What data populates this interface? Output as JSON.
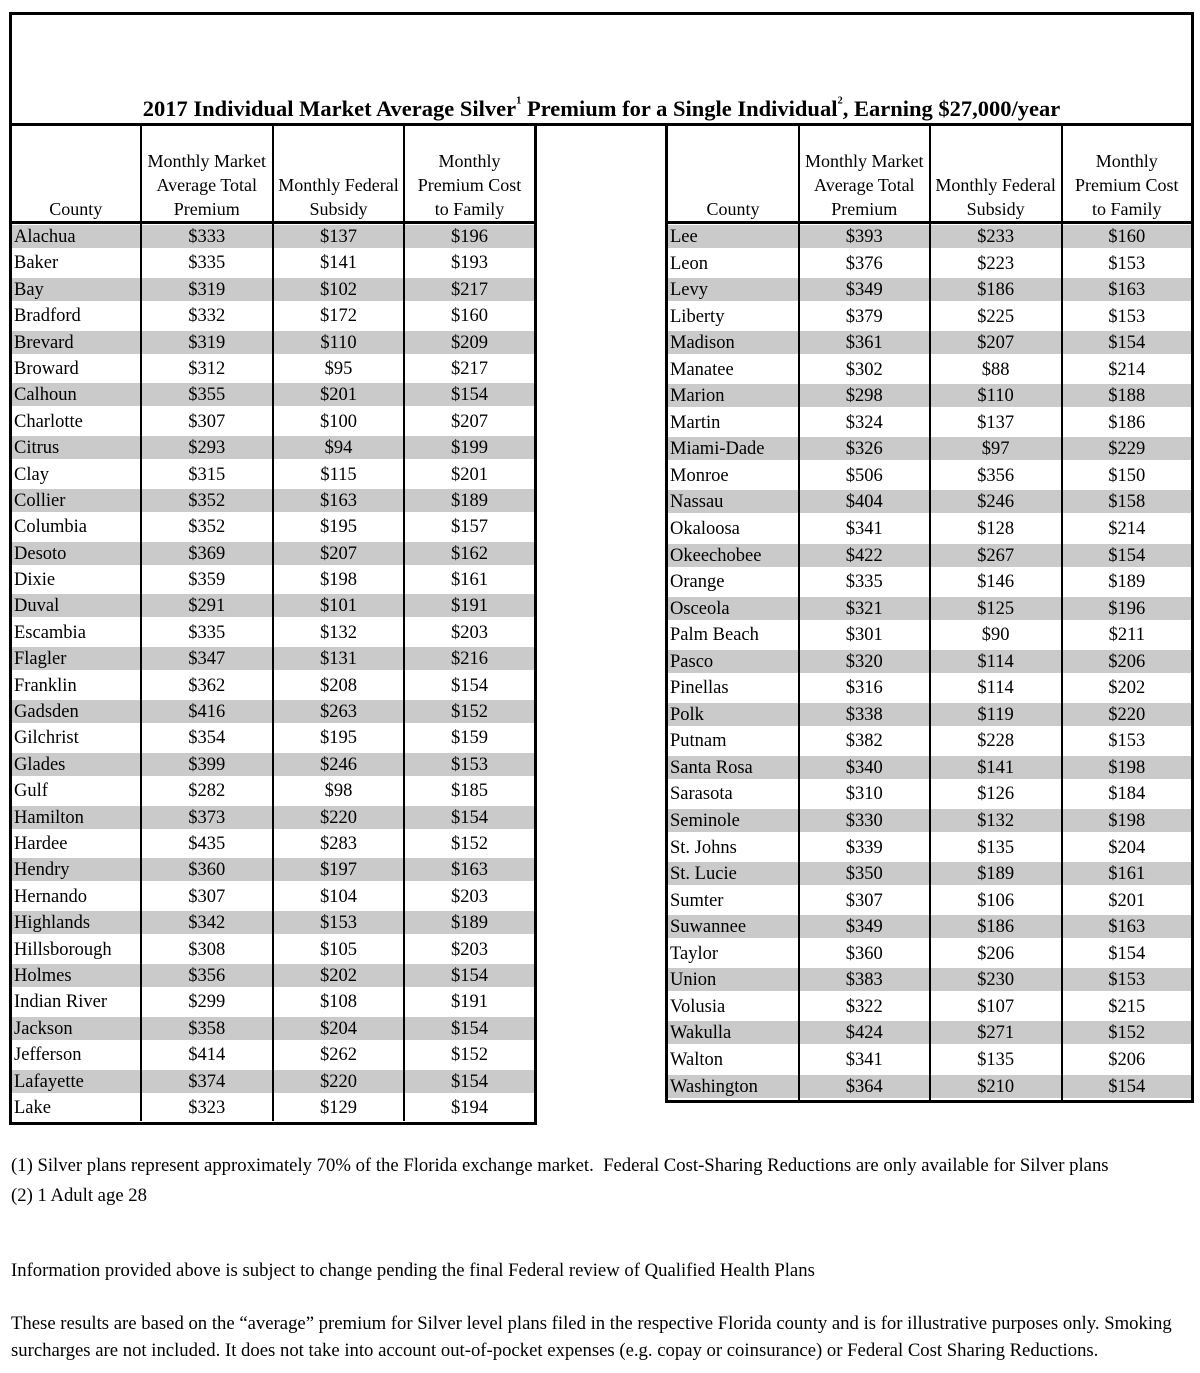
{
  "title": {
    "part1": "2017 Individual Market Average Silver",
    "sup1": "1",
    "part2": " Premium for a Single Individual",
    "sup2": "2",
    "part3": ", Earning $27,000/year"
  },
  "columns": {
    "county": "County",
    "premium": "Monthly Market\nAverage Total\nPremium",
    "subsidy": "Monthly Federal\nSubsidy",
    "family": "Monthly\nPremium Cost\nto Family"
  },
  "tables": {
    "left": {
      "rows": [
        [
          "Alachua",
          "$333",
          "$137",
          "$196"
        ],
        [
          "Baker",
          "$335",
          "$141",
          "$193"
        ],
        [
          "Bay",
          "$319",
          "$102",
          "$217"
        ],
        [
          "Bradford",
          "$332",
          "$172",
          "$160"
        ],
        [
          "Brevard",
          "$319",
          "$110",
          "$209"
        ],
        [
          "Broward",
          "$312",
          "$95",
          "$217"
        ],
        [
          "Calhoun",
          "$355",
          "$201",
          "$154"
        ],
        [
          "Charlotte",
          "$307",
          "$100",
          "$207"
        ],
        [
          "Citrus",
          "$293",
          "$94",
          "$199"
        ],
        [
          "Clay",
          "$315",
          "$115",
          "$201"
        ],
        [
          "Collier",
          "$352",
          "$163",
          "$189"
        ],
        [
          "Columbia",
          "$352",
          "$195",
          "$157"
        ],
        [
          "Desoto",
          "$369",
          "$207",
          "$162"
        ],
        [
          "Dixie",
          "$359",
          "$198",
          "$161"
        ],
        [
          "Duval",
          "$291",
          "$101",
          "$191"
        ],
        [
          "Escambia",
          "$335",
          "$132",
          "$203"
        ],
        [
          "Flagler",
          "$347",
          "$131",
          "$216"
        ],
        [
          "Franklin",
          "$362",
          "$208",
          "$154"
        ],
        [
          "Gadsden",
          "$416",
          "$263",
          "$152"
        ],
        [
          "Gilchrist",
          "$354",
          "$195",
          "$159"
        ],
        [
          "Glades",
          "$399",
          "$246",
          "$153"
        ],
        [
          "Gulf",
          "$282",
          "$98",
          "$185"
        ],
        [
          "Hamilton",
          "$373",
          "$220",
          "$154"
        ],
        [
          "Hardee",
          "$435",
          "$283",
          "$152"
        ],
        [
          "Hendry",
          "$360",
          "$197",
          "$163"
        ],
        [
          "Hernando",
          "$307",
          "$104",
          "$203"
        ],
        [
          "Highlands",
          "$342",
          "$153",
          "$189"
        ],
        [
          "Hillsborough",
          "$308",
          "$105",
          "$203"
        ],
        [
          "Holmes",
          "$356",
          "$202",
          "$154"
        ],
        [
          "Indian River",
          "$299",
          "$108",
          "$191"
        ],
        [
          "Jackson",
          "$358",
          "$204",
          "$154"
        ],
        [
          "Jefferson",
          "$414",
          "$262",
          "$152"
        ],
        [
          "Lafayette",
          "$374",
          "$220",
          "$154"
        ],
        [
          "Lake",
          "$323",
          "$129",
          "$194"
        ]
      ]
    },
    "right": {
      "rows": [
        [
          "Lee",
          "$393",
          "$233",
          "$160"
        ],
        [
          "Leon",
          "$376",
          "$223",
          "$153"
        ],
        [
          "Levy",
          "$349",
          "$186",
          "$163"
        ],
        [
          "Liberty",
          "$379",
          "$225",
          "$153"
        ],
        [
          "Madison",
          "$361",
          "$207",
          "$154"
        ],
        [
          "Manatee",
          "$302",
          "$88",
          "$214"
        ],
        [
          "Marion",
          "$298",
          "$110",
          "$188"
        ],
        [
          "Martin",
          "$324",
          "$137",
          "$186"
        ],
        [
          "Miami-Dade",
          "$326",
          "$97",
          "$229"
        ],
        [
          "Monroe",
          "$506",
          "$356",
          "$150"
        ],
        [
          "Nassau",
          "$404",
          "$246",
          "$158"
        ],
        [
          "Okaloosa",
          "$341",
          "$128",
          "$214"
        ],
        [
          "Okeechobee",
          "$422",
          "$267",
          "$154"
        ],
        [
          "Orange",
          "$335",
          "$146",
          "$189"
        ],
        [
          "Osceola",
          "$321",
          "$125",
          "$196"
        ],
        [
          "Palm Beach",
          "$301",
          "$90",
          "$211"
        ],
        [
          "Pasco",
          "$320",
          "$114",
          "$206"
        ],
        [
          "Pinellas",
          "$316",
          "$114",
          "$202"
        ],
        [
          "Polk",
          "$338",
          "$119",
          "$220"
        ],
        [
          "Putnam",
          "$382",
          "$228",
          "$153"
        ],
        [
          "Santa Rosa",
          "$340",
          "$141",
          "$198"
        ],
        [
          "Sarasota",
          "$310",
          "$126",
          "$184"
        ],
        [
          "Seminole",
          "$330",
          "$132",
          "$198"
        ],
        [
          "St. Johns",
          "$339",
          "$135",
          "$204"
        ],
        [
          "St. Lucie",
          "$350",
          "$189",
          "$161"
        ],
        [
          "Sumter",
          "$307",
          "$106",
          "$201"
        ],
        [
          "Suwannee",
          "$349",
          "$186",
          "$163"
        ],
        [
          "Taylor",
          "$360",
          "$206",
          "$154"
        ],
        [
          "Union",
          "$383",
          "$230",
          "$153"
        ],
        [
          "Volusia",
          "$322",
          "$107",
          "$215"
        ],
        [
          "Wakulla",
          "$424",
          "$271",
          "$152"
        ],
        [
          "Walton",
          "$341",
          "$135",
          "$206"
        ],
        [
          "Washington",
          "$364",
          "$210",
          "$154"
        ]
      ]
    }
  },
  "footnotes": {
    "note1": "(1) Silver plans represent approximately 70% of the Florida exchange market.  Federal Cost-Sharing Reductions are only available for Silver plans",
    "note2": "(2) 1 Adult age 28",
    "info": "Information provided above is subject to change pending the final Federal review of Qualified Health Plans",
    "disclaimer": "These results are based on the “average” premium for Silver level plans filed in the respective Florida county and is for illustrative purposes only. Smoking surcharges are not included. It does not take into account out-of-pocket expenses (e.g. copay or coinsurance) or Federal Cost Sharing Reductions."
  },
  "colors": {
    "row_shade": "#cacaca",
    "border": "#000000"
  }
}
